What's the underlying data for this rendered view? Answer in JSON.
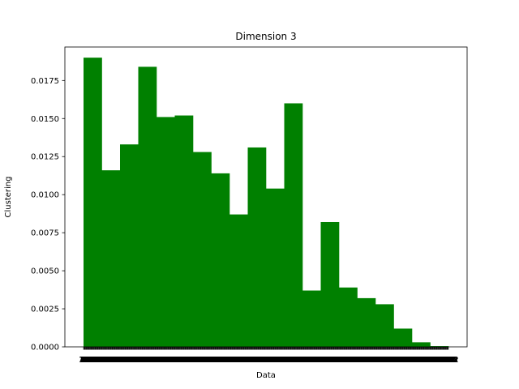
{
  "chart_data": {
    "type": "bar",
    "title": "Dimension 3",
    "xlabel": "Data",
    "ylabel": "Clustering",
    "bar_color": "#008000",
    "ylim": [
      0,
      0.0197
    ],
    "y_ticks": [
      "0.0000",
      "0.0025",
      "0.0050",
      "0.0075",
      "0.0100",
      "0.0125",
      "0.0150",
      "0.0175"
    ],
    "y_tick_values": [
      0,
      0.0025,
      0.005,
      0.0075,
      0.01,
      0.0125,
      0.015,
      0.0175
    ],
    "values": [
      0.019,
      0.0116,
      0.0133,
      0.0184,
      0.0151,
      0.0152,
      0.0128,
      0.0114,
      0.0087,
      0.0131,
      0.0104,
      0.016,
      0.0037,
      0.0082,
      0.0039,
      0.0032,
      0.0028,
      0.0012,
      0.0003,
      5e-05
    ],
    "x_ticks": [
      "5",
      "14",
      "24",
      "33",
      "42",
      "52",
      "61",
      "70",
      "80",
      "89",
      "98",
      "108",
      "117",
      "126",
      "136",
      "145",
      "154",
      "164",
      "173",
      "182",
      "192",
      "201",
      "210",
      "220",
      "229",
      "238",
      "248",
      "257",
      "266",
      "276",
      "285",
      "294",
      "304",
      "313",
      "322",
      "332",
      "341",
      "350",
      "360",
      "369",
      "378",
      "388",
      "397",
      "406",
      "416",
      "425",
      "434",
      "444",
      "453",
      "462",
      "472",
      "481",
      "490",
      "500",
      "509",
      "518",
      "528",
      "537",
      "546",
      "556",
      "565",
      "574",
      "584",
      "593",
      "602",
      "612",
      "621",
      "630",
      "640",
      "649",
      "658",
      "668",
      "677",
      "686",
      "696",
      "705",
      "714",
      "724",
      "733",
      "742",
      "752",
      "761",
      "770",
      "780",
      "789",
      "798",
      "808",
      "817",
      "826",
      "836",
      "845",
      "854",
      "864",
      "873",
      "882",
      "892",
      "901",
      "910",
      "920",
      "929",
      "938",
      "948",
      "957",
      "966",
      "976",
      "985",
      "994",
      "1004",
      "1013",
      "1022",
      "1032",
      "1041",
      "1050",
      "1060",
      "1069",
      "1078",
      "1088",
      "1097",
      "1106",
      "1116",
      "1125",
      "1134",
      "1144",
      "1153",
      "1162",
      "1172",
      "1181",
      "1190",
      "1200",
      "1209",
      "1218",
      "1228",
      "1237",
      "1246",
      "1256",
      "1265",
      "1274",
      "1284",
      "1293",
      "1302",
      "1312",
      "1321",
      "1330",
      "1340",
      "1349",
      "1358",
      "1368",
      "1377",
      "1386",
      "1396",
      "1405",
      "1414",
      "1424",
      "1433",
      "1442",
      "1452",
      "1461",
      "1470",
      "1480",
      "1489",
      "1498",
      "1508",
      "1517",
      "1526",
      "1536",
      "1545",
      "1554",
      "1564",
      "1573",
      "1582",
      "1592",
      "1601",
      "1610",
      "1620",
      "1629",
      "1638",
      "1648",
      "1657",
      "1666",
      "1676",
      "1685",
      "1694",
      "1704",
      "1713",
      "1722",
      "1732",
      "1741",
      "1750",
      "1760",
      "1769",
      "1778",
      "1788",
      "1797",
      "1806",
      "1816",
      "1825",
      "1834",
      "1844",
      "1853",
      "1862",
      "1872",
      "1881",
      "1890",
      "1900",
      "1909",
      "1918",
      "1928",
      "1937",
      "1946",
      "1956",
      "1965",
      "1974",
      "1984",
      "1993",
      "2002",
      "2012",
      "2021",
      "2030",
      "2040",
      "2049",
      "2058",
      "2068",
      "2077",
      "2086",
      "2096",
      "2105",
      "2114",
      "2124",
      "2133",
      "2142",
      "2152",
      "2161",
      "2170",
      "2180",
      "2189",
      "2198",
      "2208",
      "2217",
      "2226",
      "2236",
      "2245",
      "2254",
      "2264",
      "2273",
      "2282",
      "2292",
      "2301",
      "2310",
      "2320",
      "2329",
      "2338",
      "2348",
      "2357",
      "2366",
      "2376",
      "2385",
      "2394",
      "2404",
      "2413",
      "2422",
      "2432",
      "2441",
      "2450",
      "2460",
      "2469",
      "2478",
      "2488",
      "2497",
      "2506",
      "2516",
      "2525",
      "2534",
      "2544",
      "2553",
      "2562",
      "2572",
      "2581",
      "2590",
      "2600",
      "2609",
      "2618",
      "2628",
      "2637",
      "2646",
      "2656",
      "2665",
      "2674",
      "2684",
      "2693",
      "2702",
      "2712",
      "2721",
      "2730",
      "2740",
      "2749",
      "2758",
      "2768",
      "2777",
      "2786",
      "2796",
      "2805",
      "2814",
      "2824",
      "2833",
      "2842",
      "2852",
      "2861",
      "2870",
      "2880",
      "2889",
      "2898",
      "2908",
      "2917",
      "2926",
      "2936",
      "2945",
      "2954",
      "2964",
      "2973",
      "2982",
      "2992",
      "3001",
      "3010",
      "3020",
      "3029",
      "3038",
      "3048",
      "3057",
      "3066",
      "3076",
      "3085",
      "3094",
      "3104",
      "3113",
      "3122",
      "3132",
      "3141",
      "3150",
      "3160",
      "3169",
      "3178",
      "3188",
      "3197",
      "3206",
      "3216",
      "3225",
      "3234",
      "3244",
      "3253",
      "3262",
      "3272",
      "3281",
      "3290",
      "3300",
      "3309",
      "3318",
      "3328",
      "3337",
      "3346",
      "3356",
      "3365",
      "3374",
      "3384",
      "3393",
      "3402",
      "3412",
      "3421",
      "3430",
      "3440",
      "3449",
      "3458",
      "3468",
      "3477",
      "3486",
      "3496",
      "3505",
      "3514",
      "3524",
      "3533",
      "3542",
      "3552",
      "3561",
      "3570",
      "3580",
      "3589",
      "3598",
      "3608",
      "3617",
      "3626",
      "3636",
      "3645",
      "3654",
      "3664",
      "3673",
      "3682",
      "3692",
      "3701",
      "3710",
      "3720",
      "3729",
      "3738",
      "3748",
      "3757",
      "3766",
      "3776",
      "3785",
      "3794",
      "3804",
      "3813",
      "3822",
      "3832",
      "3841",
      "3850",
      "3860",
      "3869",
      "3878",
      "3888",
      "3897",
      "3906",
      "3916",
      "3925",
      "3934",
      "3944",
      "3953",
      "3962",
      "3972",
      "3981",
      "3990",
      "4000",
      "4009",
      "4018",
      "4028",
      "4037",
      "4046",
      "4056",
      "4065",
      "4074",
      "4084",
      "4093",
      "4102",
      "4112",
      "4121",
      "4130",
      "4140",
      "4149",
      "4158",
      "4168",
      "4177",
      "4186",
      "4196",
      "4205",
      "4214",
      "4224",
      "4233",
      "4242",
      "4252",
      "4261",
      "4270",
      "4280",
      "4289",
      "4298",
      "4308",
      "4317",
      "4326",
      "4336",
      "4345",
      "4354",
      "4364",
      "4373",
      "4382",
      "4392",
      "4401",
      "4410",
      "4420",
      "4429",
      "4438",
      "4448",
      "4457",
      "4466",
      "4476",
      "4485",
      "4494",
      "4504",
      "4513",
      "4522",
      "4532",
      "4541",
      "4550",
      "4560",
      "4569",
      "4578",
      "4588",
      "4597",
      "4606",
      "4616",
      "4625",
      "4634",
      "4644",
      "4653",
      "4662",
      "4672",
      "4681",
      "4690",
      "4700",
      "4709",
      "4718",
      "4728",
      "4737",
      "4746",
      "4756",
      "4765",
      "4774",
      "4784",
      "4793",
      "4802",
      "4812",
      "4821",
      "4830",
      "4840",
      "4849",
      "4858",
      "4868",
      "4877",
      "4886",
      "4896",
      "4905",
      "4914",
      "4924",
      "4933",
      "4942",
      "4952",
      "4961",
      "4970",
      "4980",
      "4989",
      "4998",
      "5008",
      "5017",
      "5026",
      "5036",
      "5045",
      "5054",
      "5064",
      "5073",
      "5082",
      "5092",
      "5101",
      "5110",
      "5120",
      "5129",
      "5138",
      "5148",
      "5157",
      "5166",
      "5176",
      "5185",
      "5194",
      "5204",
      "5213",
      "5222",
      "5232",
      "5241",
      "5250",
      "5260",
      "5269",
      "5278",
      "5288",
      "5297",
      "5306",
      "5316",
      "5325",
      "5334",
      "5344",
      "5353",
      "5362",
      "5372",
      "5381",
      "5390",
      "5400",
      "5409",
      "5418",
      "5428",
      "5437",
      "5446",
      "5456",
      "5465",
      "5474",
      "5484",
      "5493",
      "5502",
      "5512",
      "5521",
      "5530",
      "5540",
      "5549",
      "5558",
      "5568",
      "5577",
      "5586",
      "5596",
      "5605",
      "5614",
      "5624",
      "5633",
      "5642",
      "5652",
      "5661",
      "5670",
      "5680",
      "5689",
      "5698",
      "5708",
      "5717",
      "5726",
      "5736",
      "5745",
      "5754",
      "5764",
      "5773",
      "5782",
      "5792",
      "5801",
      "5810",
      "5820",
      "5829",
      "5838",
      "5848",
      "5857",
      "5866",
      "5876",
      "5885",
      "5894",
      "5904",
      "5913",
      "5922",
      "5932",
      "5941",
      "5950",
      "5960",
      "5969",
      "5978",
      "5988",
      "5997",
      "6006",
      "6016",
      "6025",
      "6034",
      "6044",
      "6053",
      "6062",
      "6072",
      "6081",
      "6090",
      "6100",
      "6109",
      "6118",
      "6128",
      "6137",
      "6146",
      "6156",
      "6165",
      "6174",
      "6184",
      "6193",
      "6202",
      "6212",
      "6221",
      "6230",
      "6240",
      "6249",
      "6258",
      "6268",
      "6277",
      "6286",
      "6296",
      "6305",
      "6314",
      "6324",
      "6333",
      "6342",
      "6352",
      "6361",
      "6370",
      "6380",
      "6389",
      "6398",
      "6408",
      "6417",
      "6426",
      "6436",
      "6445",
      "6454",
      "6464",
      "6473",
      "6482",
      "6492",
      "6501",
      "6510",
      "6520",
      "6529",
      "6538",
      "6548",
      "6557",
      "6566",
      "6576",
      "6585",
      "6594",
      "6604",
      "6613",
      "6622",
      "6632",
      "6641",
      "6650",
      "6660",
      "6669",
      "6678",
      "6688",
      "6697",
      "6706",
      "6716",
      "6725",
      "6734",
      "6744",
      "6753",
      "6762",
      "6772",
      "6781",
      "6790",
      "6800",
      "6809",
      "6818",
      "6828",
      "6837",
      "6846",
      "6856",
      "6865",
      "6874",
      "6884",
      "6893",
      "6902",
      "6912",
      "6921",
      "6930",
      "6940",
      "6949",
      "6958",
      "6968",
      "6977",
      "6986",
      "6996",
      "7005",
      "7014",
      "7024",
      "7033",
      "7042",
      "7052",
      "7061",
      "7070",
      "7080",
      "7089",
      "7098",
      "7108",
      "7117",
      "7126",
      "7136",
      "7145",
      "7154",
      "7164",
      "7173",
      "7182",
      "7192",
      "7201",
      "7210",
      "7220",
      "7229",
      "7238",
      "7248",
      "7257",
      "7266",
      "7276",
      "7285",
      "7294",
      "7304",
      "7313",
      "7322",
      "7332",
      "7341",
      "7350",
      "7360",
      "7369",
      "7378",
      "7388",
      "7397",
      "7406",
      "7416",
      "7425",
      "7434",
      "7444",
      "7453",
      "7462",
      "7472",
      "7481",
      "7490",
      "7500",
      "7509",
      "7518",
      "7528",
      "7537",
      "7546",
      "7556",
      "7565",
      "7574",
      "7584",
      "7593",
      "7602",
      "7612",
      "7621",
      "7630",
      "7640",
      "7649",
      "7658",
      "7668",
      "7677",
      "7686",
      "7696",
      "7705",
      "7714",
      "7724",
      "7733",
      "7742",
      "7752",
      "7761",
      "7770",
      "7780",
      "7789",
      "7798",
      "7808",
      "7817",
      "7826",
      "7836",
      "7845",
      "7854",
      "7864",
      "7873",
      "7882",
      "7892",
      "7901",
      "7910",
      "7920",
      "7929",
      "7938",
      "7948",
      "7957",
      "7966",
      "7976",
      "7985",
      "7994",
      "8004",
      "8013",
      "8022",
      "8032",
      "8041",
      "8050",
      "8060",
      "8069",
      "8078",
      "8088",
      "8097",
      "8106",
      "8116",
      "8125",
      "8134",
      "8144",
      "8153",
      "8162",
      "8172",
      "8181",
      "8190",
      "8200",
      "8209",
      "8218",
      "8228",
      "8237",
      "8246",
      "8256",
      "8265",
      "8274",
      "8284",
      "8293",
      "8302",
      "8312",
      "8321",
      "8330",
      "8340",
      "8349",
      "8358",
      "8368",
      "8377",
      "8386",
      "8396",
      "8405",
      "8414",
      "8424",
      "8433",
      "8442",
      "8452",
      "8461",
      "8470",
      "8480",
      "8489",
      "8498",
      "8508",
      "8517",
      "8526",
      "8536",
      "8545",
      "8554",
      "8564",
      "8573",
      "8582",
      "8592",
      "8601",
      "8610",
      "8620",
      "8629",
      "8638",
      "8648",
      "8657",
      "8666",
      "8676",
      "8685",
      "8694",
      "8704",
      "8713",
      "8722",
      "8732",
      "8741",
      "8750",
      "8760",
      "8769",
      "8778",
      "8788",
      "8797",
      "8806",
      "8816",
      "8825",
      "8834",
      "8844",
      "8853",
      "8862",
      "8872",
      "8881",
      "8890",
      "8900",
      "8909",
      "8918",
      "8928",
      "8937",
      "8946",
      "8956",
      "8965",
      "8974",
      "8984",
      "8993",
      "9002",
      "9012",
      "9021",
      "9030",
      "9040",
      "9049",
      "9058",
      "9068",
      "9077",
      "9086",
      "9096",
      "9105",
      "9114",
      "9124",
      "9133",
      "9142",
      "9152",
      "9161",
      "9170",
      "9180",
      "9189",
      "9198",
      "9208",
      "9217",
      "9226",
      "9236",
      "9245",
      "9254",
      "9264",
      "9273",
      "9282",
      "9292",
      "9301",
      "9310",
      "9320",
      "9329",
      "9338",
      "9348",
      "9357",
      "9366",
      "9376",
      "9385",
      "9394",
      "9404",
      "9413",
      "9422",
      "9432",
      "9441",
      "9450",
      "9460",
      "9469",
      "9478",
      "9488",
      "9497",
      "9506",
      "9516",
      "9525",
      "9534",
      "9544",
      "9553",
      "9562",
      "9572",
      "9581",
      "9590",
      "9600",
      "9609",
      "9618",
      "9628",
      "9637",
      "9646",
      "9656",
      "9665",
      "9674",
      "9684",
      "9693",
      "9702",
      "9712",
      "9721",
      "9730",
      "9740",
      "9749",
      "9758",
      "9768",
      "9777",
      "9786",
      "9796",
      "9805",
      "9814",
      "9824",
      "9833",
      "9842",
      "9852",
      "9861",
      "9870",
      "9880",
      "9889",
      "9898",
      "9908",
      "9917",
      "9926",
      "9936",
      "9945",
      "9954",
      "9964",
      "9973",
      "9982",
      "9992"
    ]
  }
}
